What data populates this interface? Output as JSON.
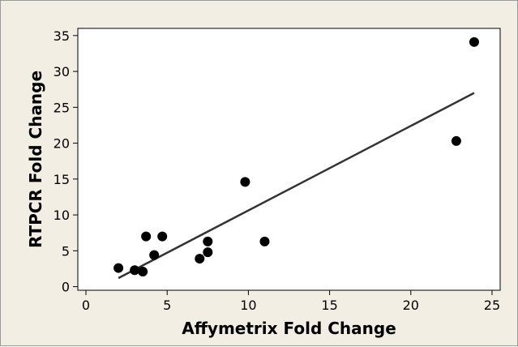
{
  "chart_data": {
    "type": "scatter",
    "xlabel": "Affymetrix Fold Change",
    "ylabel": "RTPCR Fold Change",
    "xlim": [
      -0.5,
      25.5
    ],
    "ylim": [
      -0.5,
      36
    ],
    "x_ticks": [
      0,
      5,
      10,
      15,
      20,
      25
    ],
    "y_ticks": [
      0,
      5,
      10,
      15,
      20,
      25,
      30,
      35
    ],
    "grid": false,
    "series": [
      {
        "points": [
          {
            "x": 2.0,
            "y": 2.6
          },
          {
            "x": 3.0,
            "y": 2.3
          },
          {
            "x": 3.5,
            "y": 2.1
          },
          {
            "x": 3.7,
            "y": 7.0
          },
          {
            "x": 4.2,
            "y": 4.4
          },
          {
            "x": 4.7,
            "y": 7.0
          },
          {
            "x": 7.0,
            "y": 3.9
          },
          {
            "x": 7.5,
            "y": 6.3
          },
          {
            "x": 7.5,
            "y": 4.8
          },
          {
            "x": 9.8,
            "y": 14.6
          },
          {
            "x": 11.0,
            "y": 6.3
          },
          {
            "x": 22.8,
            "y": 20.3
          },
          {
            "x": 23.9,
            "y": 34.1
          }
        ]
      }
    ],
    "fit_line": {
      "x": [
        2.0,
        23.9
      ],
      "y": [
        1.2,
        27.0
      ]
    },
    "colors": {
      "points": "#000000",
      "line": "#333333",
      "background": "#f2eee4",
      "plot_bg": "#ffffff"
    }
  }
}
